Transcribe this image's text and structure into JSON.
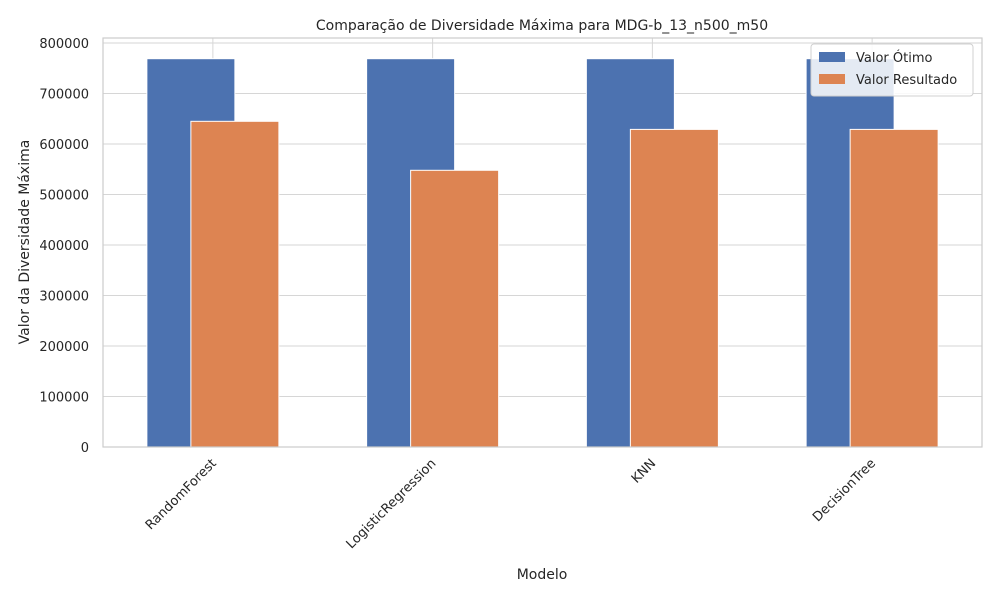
{
  "chart_data": {
    "type": "bar",
    "title": "Comparação de Diversidade Máxima para MDG-b_13_n500_m50",
    "xlabel": "Modelo",
    "ylabel": "Valor da Diversidade Máxima",
    "categories": [
      "RandomForest",
      "LogisticRegression",
      "KNN",
      "DecisionTree"
    ],
    "series": [
      {
        "name": "Valor Ótimo",
        "color": "#4c72b0",
        "values": [
          769000,
          769000,
          769000,
          769000
        ]
      },
      {
        "name": "Valor Resultado",
        "color": "#dd8452",
        "values": [
          645000,
          548000,
          629000,
          629000
        ]
      }
    ],
    "ylim": [
      0,
      810000
    ],
    "yticks": [
      0,
      100000,
      200000,
      300000,
      400000,
      500000,
      600000,
      700000,
      800000
    ],
    "grid": true,
    "legend_position": "top-right"
  }
}
